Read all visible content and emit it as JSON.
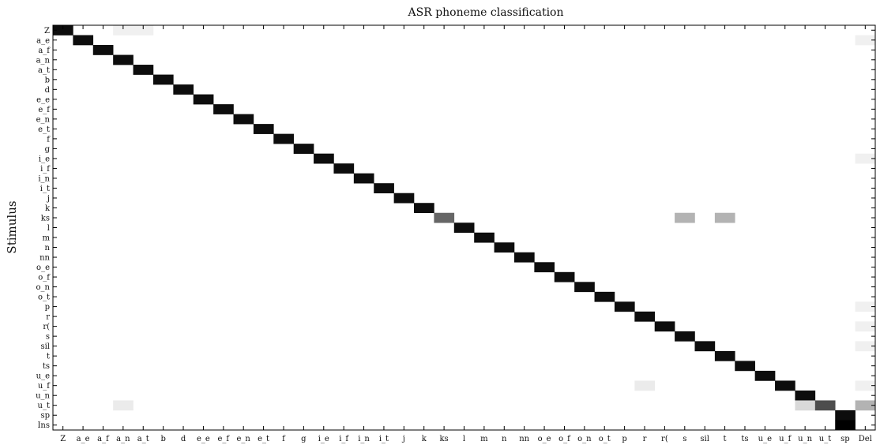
{
  "chart_data": {
    "type": "heatmap",
    "title": "ASR phoneme classification",
    "xlabel": "",
    "ylabel": "Stimulus",
    "rows": [
      "Z",
      "a_e",
      "a_f",
      "a_n",
      "a_t",
      "b",
      "d",
      "e_e",
      "e_f",
      "e_n",
      "e_t",
      "f",
      "g",
      "i_e",
      "i_f",
      "i_n",
      "i_t",
      "j",
      "k",
      "ks",
      "l",
      "m",
      "n",
      "nn",
      "o_e",
      "o_f",
      "o_n",
      "o_t",
      "p",
      "r",
      "r(",
      "s",
      "sil",
      "t",
      "ts",
      "u_e",
      "u_f",
      "u_n",
      "u_t",
      "sp",
      "Ins"
    ],
    "columns": [
      "Z",
      "a_e",
      "a_f",
      "a_n",
      "a_t",
      "b",
      "d",
      "e_e",
      "e_f",
      "e_n",
      "e_t",
      "f",
      "g",
      "i_e",
      "i_f",
      "i_n",
      "i_t",
      "j",
      "k",
      "ks",
      "l",
      "m",
      "n",
      "nn",
      "o_e",
      "o_f",
      "o_n",
      "o_t",
      "p",
      "r",
      "r(",
      "s",
      "sil",
      "t",
      "ts",
      "u_e",
      "u_f",
      "u_n",
      "u_t",
      "sp",
      "Del"
    ],
    "value_range": [
      0,
      1
    ],
    "colormap": "white-to-black",
    "diagonal_value": 0.95,
    "off_diagonal_cells": [
      {
        "row": "Z",
        "col": "a_n",
        "value": 0.06
      },
      {
        "row": "Z",
        "col": "a_t",
        "value": 0.06
      },
      {
        "row": "a_e",
        "col": "Del",
        "value": 0.06
      },
      {
        "row": "ks",
        "col": "ks",
        "value": 0.6
      },
      {
        "row": "ks",
        "col": "s",
        "value": 0.3
      },
      {
        "row": "ks",
        "col": "t",
        "value": 0.3
      },
      {
        "row": "i_e",
        "col": "Del",
        "value": 0.06
      },
      {
        "row": "p",
        "col": "Del",
        "value": 0.06
      },
      {
        "row": "r(",
        "col": "Del",
        "value": 0.06
      },
      {
        "row": "sil",
        "col": "Del",
        "value": 0.06
      },
      {
        "row": "u_f",
        "col": "r",
        "value": 0.08
      },
      {
        "row": "u_f",
        "col": "Del",
        "value": 0.06
      },
      {
        "row": "u_t",
        "col": "a_n",
        "value": 0.08
      },
      {
        "row": "u_t",
        "col": "u_n",
        "value": 0.15
      },
      {
        "row": "u_t",
        "col": "u_t",
        "value": 0.7
      },
      {
        "row": "u_t",
        "col": "Del",
        "value": 0.3
      },
      {
        "row": "Ins",
        "col": "sp",
        "value": 1.0
      }
    ],
    "no_diagonal_rows": [
      "Ins"
    ],
    "dark_diagonal_rows_exclude": [
      "ks",
      "u_t"
    ],
    "grid": false
  }
}
